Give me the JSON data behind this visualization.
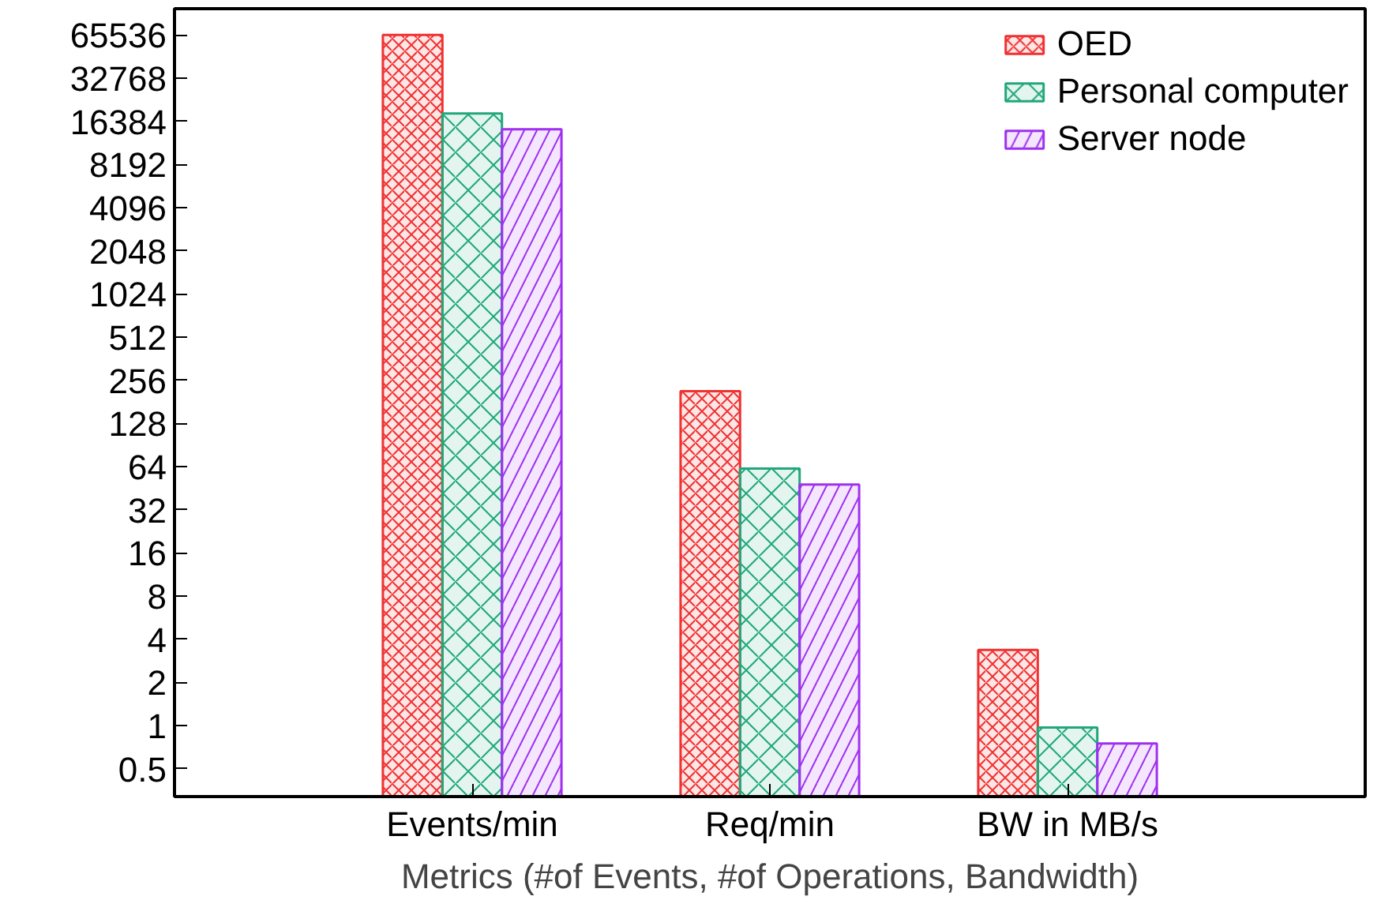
{
  "chart_data": {
    "type": "bar",
    "xlabel": "Metrics (#of Events, #of Operations, Bandwidth)",
    "categories": [
      "Events/min",
      "Req/min",
      "BW in MB/s"
    ],
    "series": [
      {
        "name": "OED",
        "color": "#f03232",
        "values": [
          65536,
          215,
          3.37
        ]
      },
      {
        "name": "Personal computer",
        "color": "#20a87a",
        "values": [
          18600,
          62,
          0.97
        ]
      },
      {
        "name": "Server node",
        "color": "#a030f0",
        "values": [
          14400,
          48,
          0.75
        ]
      }
    ],
    "log": "y",
    "ylim": [
      0.32,
      100000
    ],
    "yticks": [
      0.5,
      1,
      2,
      4,
      8,
      16,
      32,
      64,
      128,
      256,
      512,
      1024,
      2048,
      4096,
      8192,
      16384,
      32768,
      65536
    ],
    "grid": false,
    "legend": "top right"
  }
}
